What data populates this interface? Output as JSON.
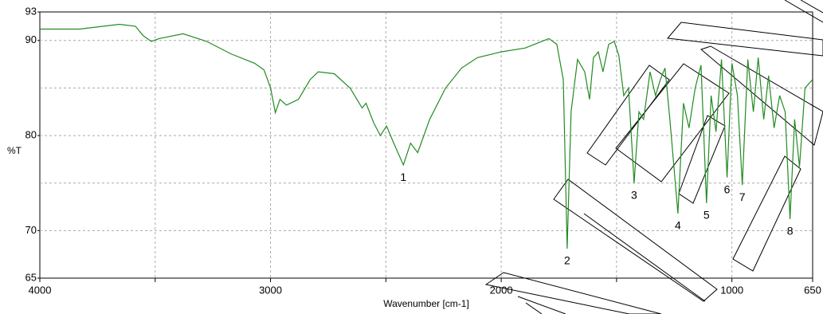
{
  "chart_data": {
    "type": "line",
    "xlabel": "Wavenumber [cm-1]",
    "ylabel": "%T",
    "xlim": [
      4000,
      650
    ],
    "ylim": [
      65,
      93
    ],
    "xticks": [
      4000,
      3000,
      2000,
      1000,
      650
    ],
    "yticks": [
      65,
      70,
      80,
      90,
      93
    ],
    "x_minor_grid": [
      3500,
      2500,
      1500
    ],
    "y_minor_grid": [
      75,
      85
    ],
    "grid": true,
    "series": [
      {
        "color": "#228b22",
        "x": [
          4000,
          3828,
          3655,
          3586,
          3552,
          3517,
          3483,
          3379,
          3276,
          3172,
          3069,
          3028,
          3000,
          2979,
          2959,
          2931,
          2879,
          2828,
          2793,
          2724,
          2655,
          2603,
          2586,
          2552,
          2524,
          2497,
          2466,
          2424,
          2393,
          2362,
          2310,
          2241,
          2172,
          2103,
          2000,
          1897,
          1793,
          1759,
          1731,
          1714,
          1697,
          1669,
          1638,
          1617,
          1600,
          1579,
          1559,
          1534,
          1510,
          1490,
          1469,
          1448,
          1424,
          1403,
          1383,
          1355,
          1331,
          1310,
          1290,
          1269,
          1234,
          1210,
          1186,
          1159,
          1134,
          1110,
          1090,
          1069,
          1045,
          1021,
          1000,
          976,
          955,
          931,
          907,
          886,
          862,
          841,
          817,
          793,
          769,
          748,
          728,
          707,
          683,
          650
        ],
        "values": [
          91.2,
          91.2,
          91.7,
          91.5,
          90.5,
          89.9,
          90.2,
          90.7,
          89.9,
          88.6,
          87.6,
          86.9,
          85.0,
          82.4,
          83.8,
          83.2,
          83.8,
          85.9,
          86.7,
          86.5,
          85.0,
          82.9,
          83.4,
          81.3,
          80.0,
          81.0,
          79.2,
          76.9,
          79.2,
          78.2,
          81.7,
          85.0,
          87.1,
          88.2,
          88.8,
          89.2,
          90.2,
          89.6,
          85.9,
          68.1,
          82.5,
          88.0,
          86.7,
          83.8,
          88.2,
          88.8,
          86.7,
          89.6,
          89.9,
          88.4,
          84.2,
          85.0,
          75.0,
          82.5,
          81.7,
          86.7,
          84.2,
          85.9,
          87.1,
          81.7,
          71.8,
          83.4,
          80.8,
          85.0,
          87.4,
          72.9,
          84.2,
          80.4,
          88.0,
          75.6,
          87.6,
          84.2,
          74.8,
          88.0,
          82.5,
          88.2,
          81.7,
          86.3,
          80.8,
          84.2,
          82.5,
          71.2,
          81.7,
          76.7,
          85.0,
          85.9
        ]
      }
    ],
    "peaks": [
      {
        "label": "1",
        "x": 2424,
        "y": 76.9
      },
      {
        "label": "2",
        "x": 1714,
        "y": 68.1
      },
      {
        "label": "3",
        "x": 1424,
        "y": 75.0
      },
      {
        "label": "4",
        "x": 1234,
        "y": 71.8
      },
      {
        "label": "5",
        "x": 1110,
        "y": 72.9
      },
      {
        "label": "6",
        "x": 1021,
        "y": 75.6
      },
      {
        "label": "7",
        "x": 955,
        "y": 74.8
      },
      {
        "label": "8",
        "x": 748,
        "y": 71.2
      }
    ]
  }
}
